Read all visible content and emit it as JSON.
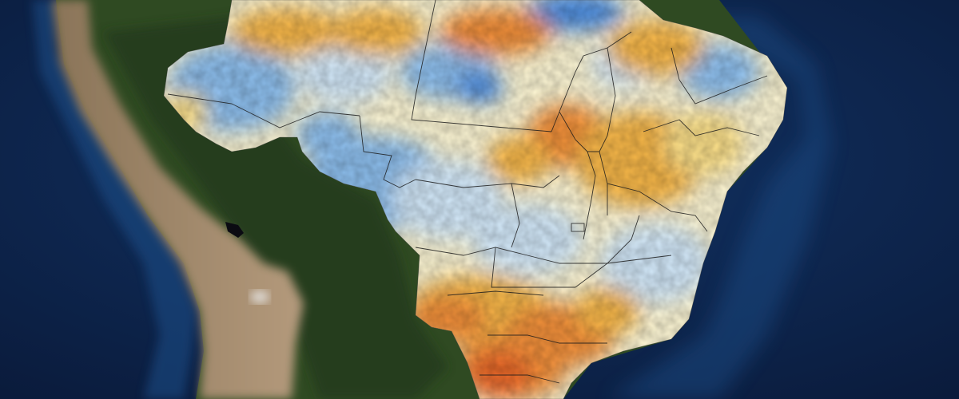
{
  "map": {
    "style": "satellite-basemap-with-anomaly-overlay",
    "region": "South America",
    "colors": {
      "ocean_deep": "#0a1a3a",
      "ocean_mid": "#123466",
      "ocean_shelf": "#1f5a9e",
      "rainforest": "#2f4a22",
      "rainforest_dark": "#23391a",
      "andes": "#8a7458",
      "andes_light": "#b49a7c",
      "anomaly_cold_strong": "#4f8fe0",
      "anomaly_cold": "#8ec0ef",
      "anomaly_cold_light": "#d4eafb",
      "anomaly_neutral": "#fff8d6",
      "anomaly_warm_light": "#fde18a",
      "anomaly_warm": "#f8b84a",
      "anomaly_hot": "#f4913a",
      "anomaly_very_hot": "#ee6a2a",
      "borders": "#1b1b1b"
    }
  }
}
